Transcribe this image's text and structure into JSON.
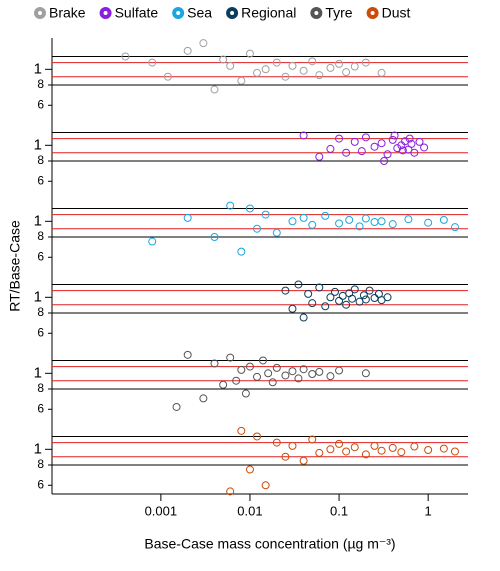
{
  "chart_data": {
    "type": "scatter",
    "ylabel": "RT/Base-Case",
    "xlabel": "Base-Case mass concentration (µg m⁻³)",
    "log_x": true,
    "log_y": true,
    "xlim": [
      6e-05,
      2.8
    ],
    "xticks": [
      0.001,
      0.01,
      0.1,
      1
    ],
    "ylim": [
      0.53,
      1.56
    ],
    "yticks": [
      1,
      {
        "value": 0.8,
        "label": "8"
      },
      {
        "value": 0.6,
        "label": "6"
      }
    ],
    "ref_lines": [
      {
        "value": 1.2,
        "color": "#000000"
      },
      {
        "value": 1.1,
        "color": "#e02020"
      },
      {
        "value": 0.9,
        "color": "#e02020"
      },
      {
        "value": 0.8,
        "color": "#000000"
      }
    ],
    "series": [
      {
        "name": "Brake",
        "color": "#a0a0a0",
        "x": [
          0.0004,
          0.0008,
          0.0012,
          0.002,
          0.003,
          0.004,
          0.005,
          0.006,
          0.008,
          0.01,
          0.012,
          0.015,
          0.02,
          0.025,
          0.03,
          0.04,
          0.05,
          0.06,
          0.08,
          0.1,
          0.12,
          0.15,
          0.2,
          0.3
        ],
        "values": [
          1.2,
          1.1,
          0.9,
          1.3,
          1.45,
          0.75,
          1.15,
          1.05,
          0.85,
          1.25,
          0.95,
          1.0,
          1.1,
          0.9,
          1.05,
          0.98,
          1.12,
          0.92,
          1.02,
          1.08,
          0.96,
          1.04,
          1.1,
          0.95
        ]
      },
      {
        "name": "Sulfate",
        "color": "#8a1fe0",
        "x": [
          0.04,
          0.06,
          0.08,
          0.1,
          0.12,
          0.15,
          0.18,
          0.2,
          0.25,
          0.3,
          0.35,
          0.4,
          0.45,
          0.5,
          0.55,
          0.6,
          0.65,
          0.7,
          0.8,
          0.9,
          0.32,
          0.42,
          0.52,
          0.62
        ],
        "values": [
          1.15,
          0.85,
          0.95,
          1.1,
          0.9,
          1.05,
          0.92,
          1.12,
          0.98,
          1.03,
          0.88,
          1.08,
          0.96,
          1.0,
          1.06,
          0.94,
          1.02,
          0.9,
          1.05,
          0.97,
          0.8,
          1.15,
          0.93,
          1.1
        ]
      },
      {
        "name": "Sea",
        "color": "#1aa7e0",
        "x": [
          0.0008,
          0.002,
          0.004,
          0.006,
          0.008,
          0.01,
          0.012,
          0.015,
          0.02,
          0.03,
          0.04,
          0.05,
          0.07,
          0.1,
          0.13,
          0.17,
          0.2,
          0.25,
          0.3,
          0.4,
          0.6,
          1,
          1.5,
          2
        ],
        "values": [
          0.75,
          1.05,
          0.8,
          1.25,
          0.65,
          1.2,
          0.9,
          1.1,
          0.85,
          1.0,
          1.05,
          0.95,
          1.08,
          0.97,
          1.02,
          0.93,
          1.04,
          0.99,
          1.0,
          0.96,
          1.03,
          0.98,
          1.02,
          0.92
        ]
      },
      {
        "name": "Regional",
        "color": "#0d3d5c",
        "x": [
          0.025,
          0.03,
          0.035,
          0.04,
          0.045,
          0.05,
          0.06,
          0.07,
          0.08,
          0.09,
          0.1,
          0.11,
          0.12,
          0.13,
          0.14,
          0.15,
          0.17,
          0.19,
          0.2,
          0.22,
          0.25,
          0.28,
          0.3,
          0.35
        ],
        "values": [
          1.1,
          0.85,
          1.2,
          0.75,
          1.05,
          0.92,
          1.15,
          0.88,
          1.0,
          1.08,
          0.95,
          1.02,
          0.9,
          1.06,
          0.98,
          1.12,
          0.94,
          1.03,
          0.97,
          1.1,
          0.99,
          1.05,
          0.96,
          1.0
        ]
      },
      {
        "name": "Tyre",
        "color": "#555555",
        "x": [
          0.0015,
          0.002,
          0.003,
          0.004,
          0.005,
          0.006,
          0.007,
          0.008,
          0.009,
          0.01,
          0.012,
          0.014,
          0.016,
          0.018,
          0.02,
          0.025,
          0.03,
          0.035,
          0.04,
          0.05,
          0.06,
          0.08,
          0.1,
          0.2
        ],
        "values": [
          0.62,
          1.3,
          0.7,
          1.15,
          0.85,
          1.25,
          0.9,
          1.05,
          0.75,
          1.1,
          0.95,
          1.2,
          1.0,
          0.88,
          1.08,
          0.97,
          1.03,
          0.93,
          1.06,
          0.99,
          1.02,
          0.96,
          1.04,
          1.0
        ]
      },
      {
        "name": "Dust",
        "color": "#cc4c0a",
        "x": [
          0.006,
          0.008,
          0.01,
          0.012,
          0.015,
          0.02,
          0.025,
          0.03,
          0.04,
          0.05,
          0.06,
          0.08,
          0.1,
          0.12,
          0.15,
          0.2,
          0.25,
          0.3,
          0.4,
          0.5,
          0.7,
          1,
          1.5,
          2
        ],
        "values": [
          0.55,
          1.3,
          0.75,
          1.2,
          0.6,
          1.1,
          0.9,
          1.05,
          0.85,
          1.15,
          0.95,
          1.0,
          1.08,
          0.97,
          1.03,
          0.93,
          1.05,
          0.98,
          1.02,
          0.96,
          1.04,
          0.99,
          1.01,
          0.97
        ]
      }
    ]
  }
}
